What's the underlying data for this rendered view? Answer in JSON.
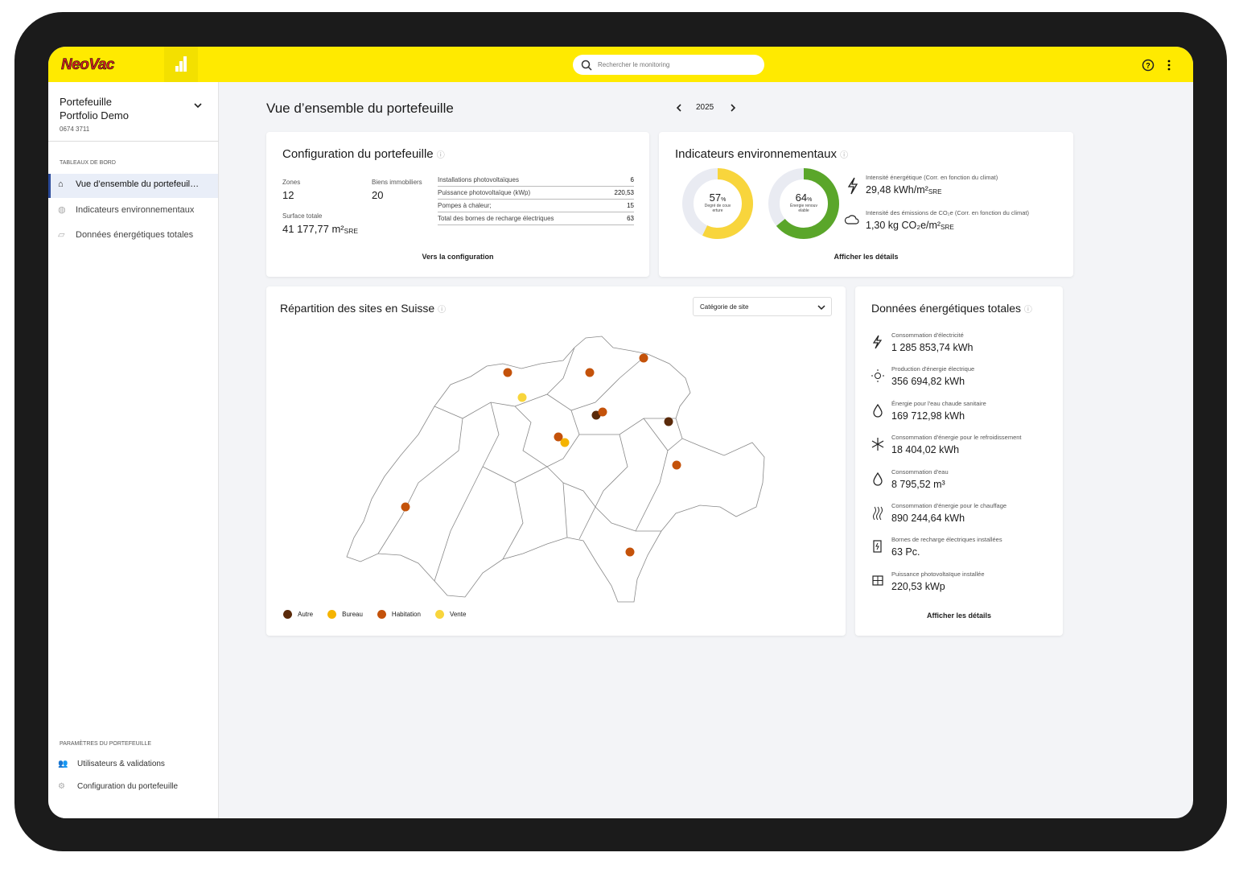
{
  "header": {
    "logo": "NeoVac",
    "search_placeholder": "Rechercher le monitoring"
  },
  "sidebar": {
    "portfolio_label": "Portefeuille",
    "portfolio_name": "Portfolio Demo",
    "portfolio_id": "0674 3711",
    "dashboards_heading": "TABLEAUX DE BORD",
    "dashboards": [
      "Vue d’ensemble du portefeuil…",
      "Indicateurs environnementaux",
      "Données énergétiques totales"
    ],
    "settings_heading": "PARAMÈTRES DU PORTEFEUILLE",
    "settings": [
      "Utilisateurs & validations",
      "Configuration du portefeuille"
    ]
  },
  "page": {
    "title": "Vue d’ensemble du portefeuille",
    "year": "2025"
  },
  "config": {
    "title": "Configuration du portefeuille",
    "zones_label": "Zones",
    "zones": "12",
    "properties_label": "Biens immobiliers",
    "properties": "20",
    "area_label": "Surface totale",
    "area": "41 177,77 m²",
    "area_sub": "SRE",
    "rows": [
      [
        "Installations photovoltaïques",
        "6"
      ],
      [
        "Puissance photovoltaïque (kWp)",
        "220,53"
      ],
      [
        "Pompes à chaleur;",
        "15"
      ],
      [
        "Total des bornes de recharge électriques",
        "63"
      ]
    ],
    "link": "Vers la configuration"
  },
  "env": {
    "title": "Indicateurs environnementaux",
    "donuts": [
      {
        "value": 57,
        "unit": "%",
        "label": "Degré de couverture",
        "color": "#f8d53c"
      },
      {
        "value": 64,
        "unit": "%",
        "label": "Énergie renouvelable",
        "color": "#5aa62a"
      }
    ],
    "metrics": [
      {
        "label": "Intensité énergétique (Corr. en fonction du climat)",
        "value": "29,48 kWh/m²",
        "sub": "SRE"
      },
      {
        "label": "Intensité des émissions de CO₂e (Corr. en fonction du climat)",
        "value": "1,30 kg CO₂e/m²",
        "sub": "SRE"
      }
    ],
    "link": "Afficher les détails"
  },
  "map": {
    "title": "Répartition des sites en Suisse",
    "dropdown": "Catégorie de site",
    "legend": [
      {
        "name": "Autre",
        "color": "#5a2a0a"
      },
      {
        "name": "Bureau",
        "color": "#f5b400"
      },
      {
        "name": "Habitation",
        "color": "#c4520a"
      },
      {
        "name": "Vente",
        "color": "#f8d53c"
      }
    ],
    "sites": [
      "Habitation",
      "Habitation",
      "Habitation",
      "Vente",
      "Autre",
      "Habitation",
      "Autre",
      "Habitation",
      "Bureau",
      "Habitation",
      "Habitation",
      "Habitation"
    ]
  },
  "energy": {
    "title": "Données énergétiques totales",
    "items": [
      {
        "label": "Consommation d'électricité",
        "value": "1 285 853,74 kWh"
      },
      {
        "label": "Production d'énergie électrique",
        "value": "356 694,82 kWh"
      },
      {
        "label": "Énergie pour l'eau chaude sanitaire",
        "value": "169 712,98 kWh"
      },
      {
        "label": "Consommation d'énergie pour le refroidissement",
        "value": "18 404,02 kWh"
      },
      {
        "label": "Consommation d'eau",
        "value": "8 795,52 m³"
      },
      {
        "label": "Consommation d'énergie pour le chauffage",
        "value": "890 244,64 kWh"
      },
      {
        "label": "Bornes de recharge électriques installées",
        "value": "63 Pc."
      },
      {
        "label": "Puissance photovoltaïque installée",
        "value": "220,53 kWp"
      }
    ],
    "link": "Afficher les détails"
  }
}
